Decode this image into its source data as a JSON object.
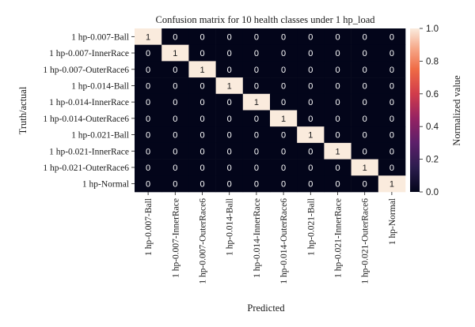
{
  "chart_data": {
    "type": "heatmap",
    "title": "Confusion matrix for 10 health classes under 1 hp_load",
    "xlabel": "Predicted",
    "ylabel": "Truth/actual",
    "colorbar_label": "Normalized value",
    "colorbar_ticks": [
      "0.0",
      "0.2",
      "0.4",
      "0.6",
      "0.8",
      "1.0"
    ],
    "zlim": [
      0,
      1
    ],
    "categories": [
      "1 hp-0.007-Ball",
      "1 hp-0.007-InnerRace",
      "1 hp-0.007-OuterRace6",
      "1 hp-0.014-Ball",
      "1 hp-0.014-InnerRace",
      "1 hp-0.014-OuterRace6",
      "1 hp-0.021-Ball",
      "1 hp-0.021-InnerRace",
      "1 hp-0.021-OuterRace6",
      "1 hp-Normal"
    ],
    "matrix": [
      [
        1,
        0,
        0,
        0,
        0,
        0,
        0,
        0,
        0,
        0
      ],
      [
        0,
        1,
        0,
        0,
        0,
        0,
        0,
        0,
        0,
        0
      ],
      [
        0,
        0,
        1,
        0,
        0,
        0,
        0,
        0,
        0,
        0
      ],
      [
        0,
        0,
        0,
        1,
        0,
        0,
        0,
        0,
        0,
        0
      ],
      [
        0,
        0,
        0,
        0,
        1,
        0,
        0,
        0,
        0,
        0
      ],
      [
        0,
        0,
        0,
        0,
        0,
        1,
        0,
        0,
        0,
        0
      ],
      [
        0,
        0,
        0,
        0,
        0,
        0,
        1,
        0,
        0,
        0
      ],
      [
        0,
        0,
        0,
        0,
        0,
        0,
        0,
        1,
        0,
        0
      ],
      [
        0,
        0,
        0,
        0,
        0,
        0,
        0,
        0,
        1,
        0
      ],
      [
        0,
        0,
        0,
        0,
        0,
        0,
        0,
        0,
        0,
        1
      ]
    ],
    "colors": {
      "low": "#03051a",
      "high": "#faebdd"
    }
  }
}
